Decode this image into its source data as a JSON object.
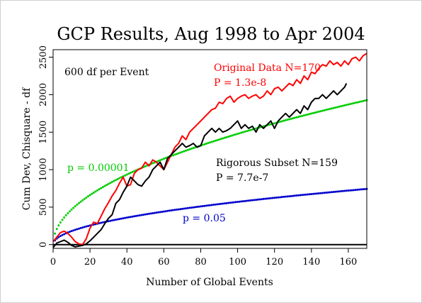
{
  "chart_data": {
    "type": "line",
    "title": "GCP Results, Aug 1998 to Apr 2004",
    "xlabel": "Number of Global Events",
    "ylabel": "Cum Dev, Chisquare - df",
    "xlim": [
      0,
      170
    ],
    "ylim": [
      -50,
      2600
    ],
    "x_ticks": [
      0,
      20,
      40,
      60,
      80,
      100,
      120,
      140,
      160
    ],
    "y_ticks": [
      0,
      500,
      1000,
      1500,
      2000,
      2500
    ],
    "grid": false,
    "annotations": [
      {
        "text": "600 df per Event",
        "color": "#000000"
      },
      {
        "text": "Original Data N=170",
        "color": "#ff0000"
      },
      {
        "text": "P = 1.3e-8",
        "color": "#ff0000"
      },
      {
        "text": "Rigorous Subset N=159",
        "color": "#000000"
      },
      {
        "text": "P = 7.7e-7",
        "color": "#000000"
      },
      {
        "text": "p = 0.00001",
        "color": "#00cc00"
      },
      {
        "text": "p = 0.05",
        "color": "#0000cc"
      }
    ],
    "series": [
      {
        "name": "Original Data N=170",
        "color": "#ff0000",
        "x": [
          0,
          2,
          4,
          6,
          8,
          10,
          12,
          14,
          16,
          18,
          20,
          22,
          24,
          26,
          28,
          30,
          32,
          34,
          36,
          38,
          40,
          42,
          44,
          46,
          48,
          50,
          52,
          54,
          56,
          58,
          60,
          62,
          64,
          66,
          68,
          70,
          72,
          74,
          76,
          78,
          80,
          82,
          84,
          86,
          88,
          90,
          92,
          94,
          96,
          98,
          100,
          102,
          104,
          106,
          108,
          110,
          112,
          114,
          116,
          118,
          120,
          122,
          124,
          126,
          128,
          130,
          132,
          134,
          136,
          138,
          140,
          142,
          144,
          146,
          148,
          150,
          152,
          154,
          156,
          158,
          160,
          162,
          164,
          166,
          168,
          170
        ],
        "y": [
          40,
          100,
          160,
          180,
          150,
          100,
          40,
          10,
          0,
          80,
          220,
          300,
          280,
          380,
          480,
          560,
          650,
          720,
          820,
          900,
          780,
          800,
          950,
          1000,
          1020,
          1100,
          1050,
          1130,
          1100,
          1050,
          1000,
          1100,
          1200,
          1300,
          1350,
          1450,
          1400,
          1500,
          1550,
          1600,
          1650,
          1700,
          1750,
          1800,
          1820,
          1900,
          1880,
          1950,
          1980,
          1900,
          1950,
          1980,
          2000,
          1950,
          1980,
          2000,
          1950,
          1980,
          2050,
          2000,
          2080,
          2100,
          2050,
          2100,
          2150,
          2120,
          2200,
          2150,
          2250,
          2200,
          2300,
          2280,
          2350,
          2400,
          2380,
          2450,
          2400,
          2430,
          2380,
          2450,
          2400,
          2480,
          2500,
          2450,
          2520,
          2550
        ]
      },
      {
        "name": "Rigorous Subset N=159",
        "color": "#000000",
        "x": [
          0,
          2,
          4,
          6,
          8,
          10,
          12,
          14,
          16,
          18,
          20,
          22,
          24,
          26,
          28,
          30,
          32,
          34,
          36,
          38,
          40,
          42,
          44,
          46,
          48,
          50,
          52,
          54,
          56,
          58,
          60,
          62,
          64,
          66,
          68,
          70,
          72,
          74,
          76,
          78,
          80,
          82,
          84,
          86,
          88,
          90,
          92,
          94,
          96,
          98,
          100,
          102,
          104,
          106,
          108,
          110,
          112,
          114,
          116,
          118,
          120,
          122,
          124,
          126,
          128,
          130,
          132,
          134,
          136,
          138,
          140,
          142,
          144,
          146,
          148,
          150,
          152,
          154,
          156,
          158,
          159
        ],
        "y": [
          -40,
          20,
          40,
          60,
          30,
          -10,
          -30,
          -20,
          -10,
          10,
          50,
          100,
          150,
          200,
          280,
          350,
          400,
          550,
          600,
          700,
          780,
          900,
          850,
          800,
          780,
          850,
          900,
          1000,
          1050,
          1100,
          1000,
          1150,
          1200,
          1250,
          1300,
          1350,
          1300,
          1320,
          1350,
          1300,
          1320,
          1450,
          1500,
          1550,
          1500,
          1550,
          1500,
          1520,
          1550,
          1600,
          1650,
          1550,
          1600,
          1550,
          1580,
          1500,
          1600,
          1550,
          1600,
          1650,
          1550,
          1650,
          1700,
          1750,
          1700,
          1750,
          1800,
          1750,
          1850,
          1800,
          1900,
          1950,
          1950,
          2000,
          1950,
          2000,
          2050,
          2000,
          2050,
          2100,
          2150
        ]
      },
      {
        "name": "p = 0.00001",
        "color": "#00cc00",
        "formula": "z * sqrt(1200 * n), z = 4.265"
      },
      {
        "name": "p = 0.05",
        "color": "#0000cc",
        "formula": "z * sqrt(1200 * n), z = 1.645"
      }
    ]
  }
}
